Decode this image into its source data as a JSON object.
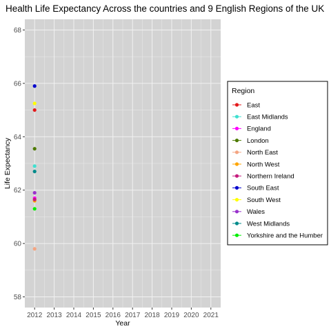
{
  "chart_data": {
    "type": "scatter",
    "title": "Health Life Expectancy Across the countries and 9 English Regions of the UK",
    "xlabel": "Year",
    "ylabel": "Life Expectancy",
    "xlim": [
      2011.5,
      2021.5
    ],
    "ylim": [
      57.6,
      68.4
    ],
    "x_ticks": [
      2012,
      2013,
      2014,
      2015,
      2016,
      2017,
      2018,
      2019,
      2020,
      2021
    ],
    "y_ticks": [
      58,
      60,
      62,
      64,
      66,
      68
    ],
    "grid": true,
    "legend_title": "Region",
    "legend_position": "right",
    "series": [
      {
        "name": "East",
        "color": "#e41a1c",
        "x": [
          2012
        ],
        "y": [
          65.0
        ]
      },
      {
        "name": "East Midlands",
        "color": "#40e0d0",
        "x": [
          2012
        ],
        "y": [
          62.9
        ]
      },
      {
        "name": "England",
        "color": "#ff00ff",
        "x": [
          2012
        ],
        "y": [
          61.7
        ]
      },
      {
        "name": "London",
        "color": "#4d7a00",
        "x": [
          2012
        ],
        "y": [
          63.55
        ]
      },
      {
        "name": "North East",
        "color": "#f4a582",
        "x": [
          2012
        ],
        "y": [
          59.8
        ]
      },
      {
        "name": "North West",
        "color": "#ffa500",
        "x": [
          2012
        ],
        "y": [
          61.6
        ]
      },
      {
        "name": "Northern Ireland",
        "color": "#c51b7d",
        "x": [
          2012
        ],
        "y": [
          61.65
        ]
      },
      {
        "name": "South East",
        "color": "#0000cd",
        "x": [
          2012
        ],
        "y": [
          65.9
        ]
      },
      {
        "name": "South West",
        "color": "#ffff00",
        "x": [
          2012
        ],
        "y": [
          65.25
        ]
      },
      {
        "name": "Wales",
        "color": "#9932cc",
        "x": [
          2012
        ],
        "y": [
          61.9
        ]
      },
      {
        "name": "West Midlands",
        "color": "#008b8b",
        "x": [
          2012
        ],
        "y": [
          62.7
        ]
      },
      {
        "name": "Yorkshire and the Humber",
        "color": "#00ee00",
        "x": [
          2012
        ],
        "y": [
          61.3
        ]
      }
    ]
  }
}
